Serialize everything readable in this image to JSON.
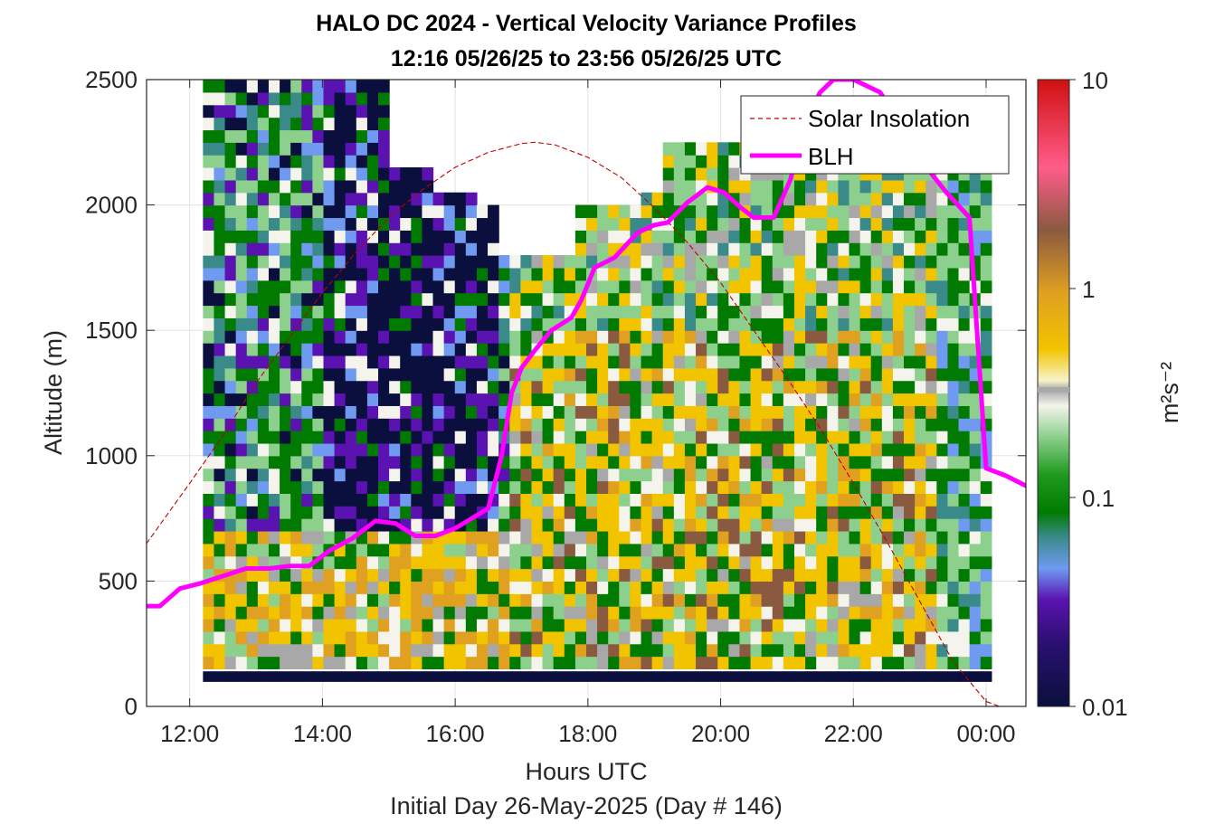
{
  "chart_data": {
    "type": "heatmap",
    "title": "HALO DC 2024 - Vertical Velocity Variance Profiles",
    "subtitle": "12:16 05/26/25 to 23:56 05/26/25  UTC",
    "xlabel": "Hours UTC",
    "xlabel2": "Initial Day 26-May-2025 (Day # 146)",
    "ylabel": "Altitude (m)",
    "xlim": [
      11.35,
      24.6
    ],
    "ylim": [
      0,
      2500
    ],
    "x_ticks": [
      12,
      14,
      16,
      18,
      20,
      22,
      24
    ],
    "x_tick_labels": [
      "12:00",
      "14:00",
      "16:00",
      "18:00",
      "20:00",
      "22:00",
      "00:00"
    ],
    "y_ticks": [
      0,
      500,
      1000,
      1500,
      2000,
      2500
    ],
    "y_tick_labels": [
      "0",
      "500",
      "1000",
      "1500",
      "2000",
      "2500"
    ],
    "grid": true,
    "legend_position": "top-right",
    "colorbar": {
      "label": "m²s⁻²",
      "scale": "log",
      "range": [
        0.01,
        10
      ],
      "tick_labels": [
        "0.01",
        "0.1",
        "1",
        "10"
      ],
      "colors": {
        "low": "#0a0f3d",
        "purple": "#5a12b0",
        "blue": "#6f9af0",
        "teal": "#3a8a8a",
        "green": "#007a00",
        "lightgreen": "#8dcf8d",
        "white": "#f4f4ec",
        "gray": "#a8a8a8",
        "yellow": "#f2c400",
        "orange": "#e0a020",
        "brown": "#8a5a40",
        "pink": "#ff5c8a",
        "high": "#d01010"
      }
    },
    "series": [
      {
        "name": "Solar Insolation",
        "style": "dashed",
        "color": "#c00000",
        "x": [
          11.35,
          12.0,
          12.5,
          13.0,
          13.5,
          14.0,
          14.5,
          15.0,
          15.5,
          16.0,
          16.5,
          17.0,
          17.2,
          17.5,
          18.0,
          18.5,
          19.0,
          19.5,
          20.0,
          20.5,
          21.0,
          21.5,
          22.0,
          22.5,
          23.0,
          23.5,
          24.0,
          24.2
        ],
        "y": [
          650,
          890,
          1080,
          1290,
          1470,
          1650,
          1810,
          1950,
          2060,
          2150,
          2210,
          2245,
          2250,
          2240,
          2190,
          2110,
          1990,
          1850,
          1690,
          1500,
          1310,
          1110,
          890,
          660,
          420,
          180,
          20,
          0
        ]
      },
      {
        "name": "BLH",
        "style": "solid",
        "color": "#ff00ff",
        "x": [
          11.35,
          11.55,
          11.85,
          12.15,
          12.5,
          12.85,
          13.2,
          13.5,
          13.8,
          14.1,
          14.45,
          14.8,
          15.1,
          15.4,
          15.7,
          16.0,
          16.25,
          16.5,
          16.7,
          16.85,
          17.0,
          17.2,
          17.45,
          17.75,
          17.9,
          18.1,
          18.4,
          18.75,
          19.0,
          19.2,
          19.5,
          19.8,
          20.05,
          20.3,
          20.5,
          20.8,
          21.05,
          21.3,
          21.5,
          21.7,
          22.0,
          22.4,
          22.8,
          23.1,
          23.4,
          23.75,
          24.0,
          24.3,
          24.6
        ],
        "y": [
          400,
          400,
          470,
          490,
          520,
          550,
          550,
          560,
          560,
          620,
          670,
          740,
          730,
          680,
          680,
          710,
          750,
          790,
          1000,
          1250,
          1350,
          1420,
          1500,
          1550,
          1620,
          1750,
          1790,
          1890,
          1920,
          1930,
          2010,
          2070,
          2050,
          1990,
          1950,
          1950,
          2100,
          2350,
          2450,
          2500,
          2500,
          2450,
          2300,
          2150,
          2050,
          1950,
          950,
          920,
          880
        ]
      }
    ]
  }
}
